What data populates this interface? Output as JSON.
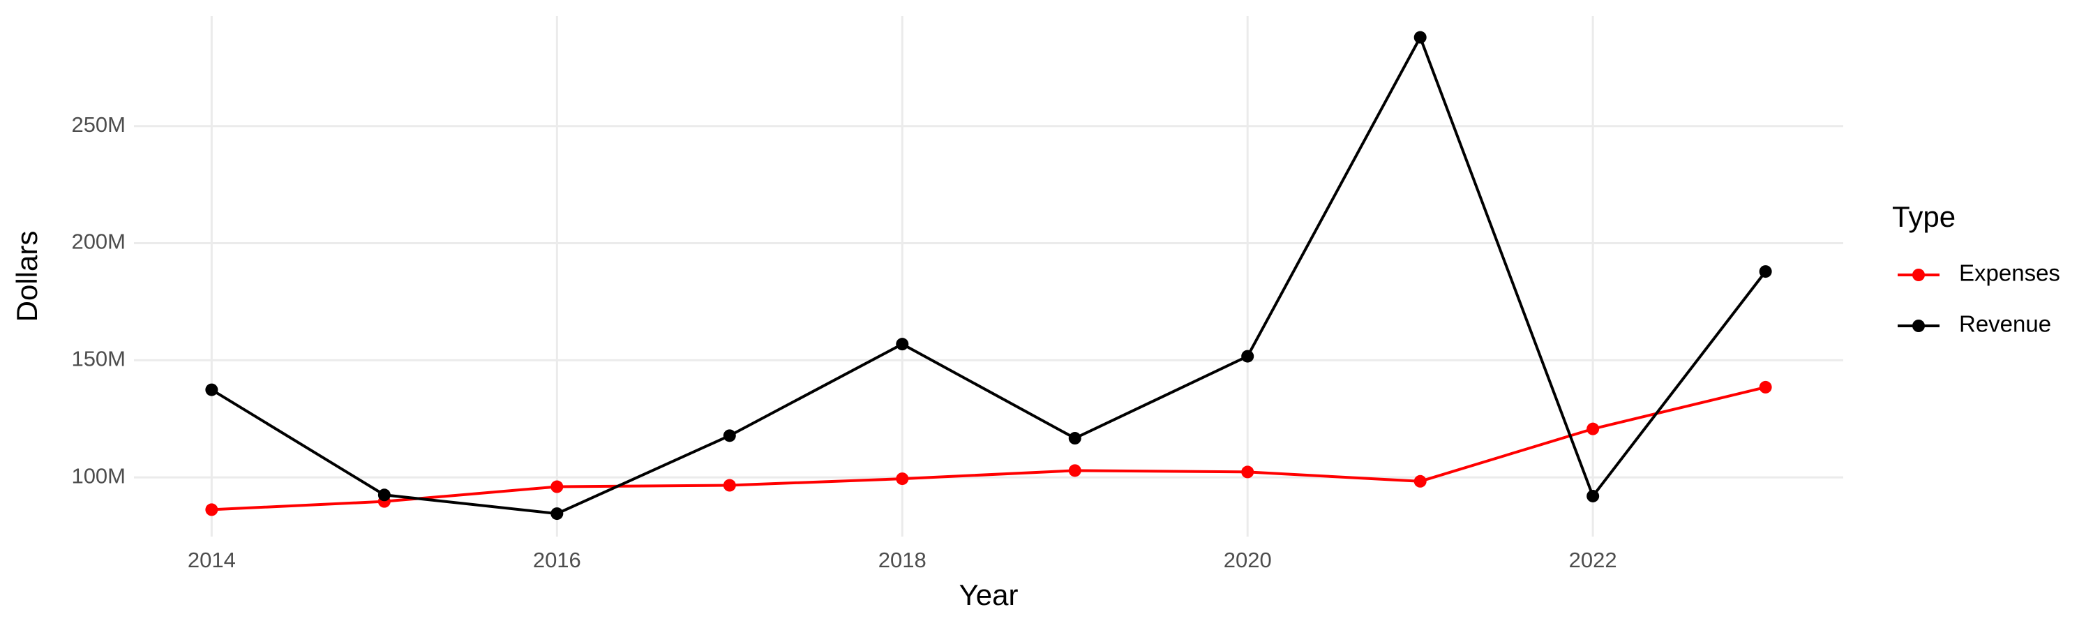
{
  "chart_data": {
    "type": "line",
    "x_label": "Year",
    "y_label": "Dollars",
    "legend_title": "Type",
    "x": [
      2014,
      2015,
      2016,
      2017,
      2018,
      2019,
      2020,
      2021,
      2022,
      2023
    ],
    "series": [
      {
        "name": "Expenses",
        "color": "#ff0000",
        "values": [
          86200000,
          89700000,
          96000000,
          96600000,
          99400000,
          102900000,
          102300000,
          98300000,
          120700000,
          138500000
        ]
      },
      {
        "name": "Revenue",
        "color": "#000000",
        "values": [
          137400000,
          92500000,
          84500000,
          117800000,
          156900000,
          116700000,
          151700000,
          287900000,
          92000000,
          187900000
        ]
      }
    ],
    "xlim": [
      2013.55,
      2023.45
    ],
    "xticks": [
      2014,
      2016,
      2018,
      2020,
      2022
    ],
    "ylim": [
      74700000,
      297000000
    ],
    "yticks": [
      {
        "value": 100000000,
        "label": "100M"
      },
      {
        "value": 150000000,
        "label": "150M"
      },
      {
        "value": 200000000,
        "label": "200M"
      },
      {
        "value": 250000000,
        "label": "250M"
      }
    ],
    "grid": true,
    "legend_position": "right"
  }
}
